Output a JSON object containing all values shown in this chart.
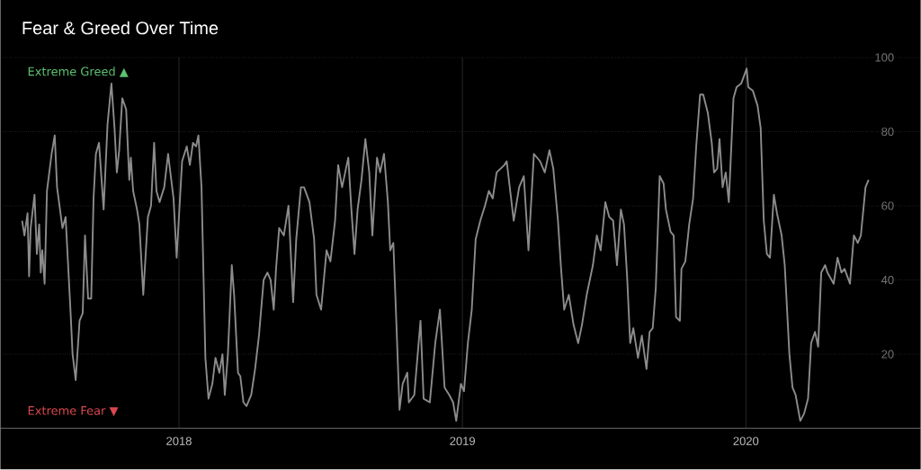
{
  "chart_data": {
    "type": "line",
    "title": "Fear & Greed Over Time",
    "annotations": [
      "Extreme Greed ▲",
      "Extreme Fear ▼"
    ],
    "x": [
      "2017-06-13",
      "2017-06-16",
      "2017-06-20",
      "2017-06-22",
      "2017-06-24",
      "2017-06-29",
      "2017-07-02",
      "2017-07-05",
      "2017-07-07",
      "2017-07-09",
      "2017-07-12",
      "2017-07-15",
      "2017-07-21",
      "2017-07-25",
      "2017-07-28",
      "2017-08-04",
      "2017-08-08",
      "2017-08-14",
      "2017-08-17",
      "2017-08-21",
      "2017-08-26",
      "2017-08-30",
      "2017-09-02",
      "2017-09-06",
      "2017-09-10",
      "2017-09-13",
      "2017-09-16",
      "2017-09-20",
      "2017-09-26",
      "2017-10-01",
      "2017-10-06",
      "2017-10-10",
      "2017-10-13",
      "2017-10-16",
      "2017-10-20",
      "2017-10-25",
      "2017-10-29",
      "2017-10-31",
      "2017-11-03",
      "2017-11-08",
      "2017-11-11",
      "2017-11-16",
      "2017-11-22",
      "2017-11-26",
      "2017-11-30",
      "2017-12-03",
      "2017-12-07",
      "2017-12-13",
      "2017-12-18",
      "2017-12-25",
      "2017-12-29",
      "2018-01-05",
      "2018-01-11",
      "2018-01-15",
      "2018-01-19",
      "2018-01-23",
      "2018-01-26",
      "2018-01-30",
      "2018-02-04",
      "2018-02-08",
      "2018-02-13",
      "2018-02-17",
      "2018-02-22",
      "2018-02-26",
      "2018-03-01",
      "2018-03-05",
      "2018-03-10",
      "2018-03-13",
      "2018-03-18",
      "2018-03-21",
      "2018-03-25",
      "2018-03-29",
      "2018-04-04",
      "2018-04-09",
      "2018-04-14",
      "2018-04-20",
      "2018-04-25",
      "2018-04-29",
      "2018-05-03",
      "2018-05-06",
      "2018-05-10",
      "2018-05-16",
      "2018-05-22",
      "2018-05-28",
      "2018-06-01",
      "2018-06-07",
      "2018-06-11",
      "2018-06-18",
      "2018-06-24",
      "2018-06-27",
      "2018-07-03",
      "2018-07-10",
      "2018-07-15",
      "2018-07-21",
      "2018-07-25",
      "2018-07-30",
      "2018-08-07",
      "2018-08-11",
      "2018-08-15",
      "2018-08-19",
      "2018-08-24",
      "2018-08-29",
      "2018-09-03",
      "2018-09-07",
      "2018-09-13",
      "2018-09-17",
      "2018-09-22",
      "2018-09-27",
      "2018-09-30",
      "2018-10-04",
      "2018-10-08",
      "2018-10-12",
      "2018-10-16",
      "2018-10-22",
      "2018-10-24",
      "2018-10-31",
      "2018-11-08",
      "2018-11-12",
      "2018-11-20",
      "2018-11-27",
      "2018-12-03",
      "2018-12-09",
      "2018-12-15",
      "2018-12-20",
      "2018-12-24",
      "2018-12-30",
      "2019-01-03",
      "2019-01-08",
      "2019-01-13",
      "2019-01-18",
      "2019-01-24",
      "2019-01-30",
      "2019-02-04",
      "2019-02-09",
      "2019-02-14",
      "2019-02-24",
      "2019-02-27",
      "2019-03-08",
      "2019-03-15",
      "2019-03-21",
      "2019-03-27",
      "2019-04-03",
      "2019-04-11",
      "2019-04-17",
      "2019-04-23",
      "2019-04-28",
      "2019-05-04",
      "2019-05-08",
      "2019-05-12",
      "2019-05-18",
      "2019-05-24",
      "2019-05-30",
      "2019-06-04",
      "2019-06-10",
      "2019-06-18",
      "2019-06-23",
      "2019-06-28",
      "2019-07-04",
      "2019-07-09",
      "2019-07-14",
      "2019-07-19",
      "2019-07-24",
      "2019-07-28",
      "2019-08-01",
      "2019-08-05",
      "2019-08-09",
      "2019-08-15",
      "2019-08-20",
      "2019-08-26",
      "2019-08-30",
      "2019-09-03",
      "2019-09-07",
      "2019-09-12",
      "2019-09-17",
      "2019-09-20",
      "2019-09-26",
      "2019-09-30",
      "2019-10-03",
      "2019-10-08",
      "2019-10-10",
      "2019-10-15",
      "2019-10-20",
      "2019-10-25",
      "2019-10-29",
      "2019-11-03",
      "2019-11-07",
      "2019-11-13",
      "2019-11-18",
      "2019-11-21",
      "2019-11-25",
      "2019-11-28",
      "2019-12-02",
      "2019-12-06",
      "2019-12-10",
      "2019-12-16",
      "2019-12-20",
      "2019-12-26",
      "2020-01-02",
      "2020-01-04",
      "2020-01-10",
      "2020-01-16",
      "2020-01-20",
      "2020-01-24",
      "2020-01-28",
      "2020-02-01",
      "2020-02-06",
      "2020-02-10",
      "2020-02-16",
      "2020-02-20",
      "2020-02-26",
      "2020-03-01",
      "2020-03-05",
      "2020-03-11",
      "2020-03-16",
      "2020-03-21",
      "2020-03-25",
      "2020-03-30",
      "2020-04-03",
      "2020-04-07",
      "2020-04-12",
      "2020-04-15",
      "2020-04-23",
      "2020-04-28",
      "2020-05-03",
      "2020-05-07",
      "2020-05-14",
      "2020-05-19",
      "2020-05-24",
      "2020-05-28",
      "2020-06-03",
      "2020-06-07"
    ],
    "series": [
      {
        "color": "#8c8c8c",
        "values": [
          56,
          52,
          58,
          41,
          54,
          63,
          47,
          55,
          42,
          48,
          39,
          64,
          74,
          79,
          65,
          54,
          57,
          33,
          20,
          13,
          29,
          31,
          52,
          35,
          35,
          62,
          74,
          77,
          59,
          82,
          93,
          81,
          69,
          75,
          89,
          86,
          67,
          73,
          64,
          59,
          55,
          36,
          57,
          60,
          77,
          64,
          61,
          65,
          74,
          62,
          46,
          72,
          76,
          71,
          77,
          76,
          79,
          65,
          19,
          8,
          12,
          19,
          15,
          20,
          9,
          20,
          44,
          36,
          15,
          14,
          7,
          6,
          9,
          16,
          25,
          40,
          42,
          40,
          32,
          43,
          54,
          52,
          60,
          34,
          51,
          65,
          65,
          61,
          51,
          36,
          32,
          48,
          45,
          56,
          71,
          65,
          73,
          59,
          47,
          59,
          67,
          78,
          69,
          52,
          73,
          69,
          74,
          61,
          48,
          50,
          28,
          5,
          12,
          15,
          7,
          9,
          29,
          8,
          7,
          23,
          32,
          11,
          9,
          7,
          2,
          12,
          10,
          23,
          32,
          51,
          56,
          60,
          64,
          62,
          69,
          71,
          72,
          56,
          65,
          68,
          48,
          74,
          72,
          69,
          75,
          70,
          56,
          43,
          32,
          36,
          28,
          23,
          28,
          36,
          44,
          52,
          48,
          61,
          57,
          56,
          44,
          59,
          55,
          41,
          23,
          27,
          19,
          25,
          16,
          26,
          27,
          38,
          68,
          66,
          59,
          53,
          52,
          30,
          29,
          43,
          45,
          55,
          62,
          76,
          90,
          90,
          85,
          77,
          69,
          70,
          78,
          65,
          69,
          61,
          89,
          92,
          93,
          97,
          92,
          91,
          87,
          81,
          56,
          47,
          46,
          63,
          58,
          52,
          44,
          20,
          11,
          9,
          2,
          4,
          8,
          23,
          26,
          22,
          42,
          44,
          42,
          39,
          46,
          42,
          43,
          39,
          52,
          50,
          52,
          65,
          67
        ]
      }
    ],
    "xlim": [
      "2017-05-16",
      "2020-08-13"
    ],
    "xticks": [
      "2018",
      "2019",
      "2020"
    ],
    "ylim": [
      0,
      100
    ],
    "yticks": [
      20,
      40,
      60,
      80,
      100
    ],
    "grid": true
  }
}
